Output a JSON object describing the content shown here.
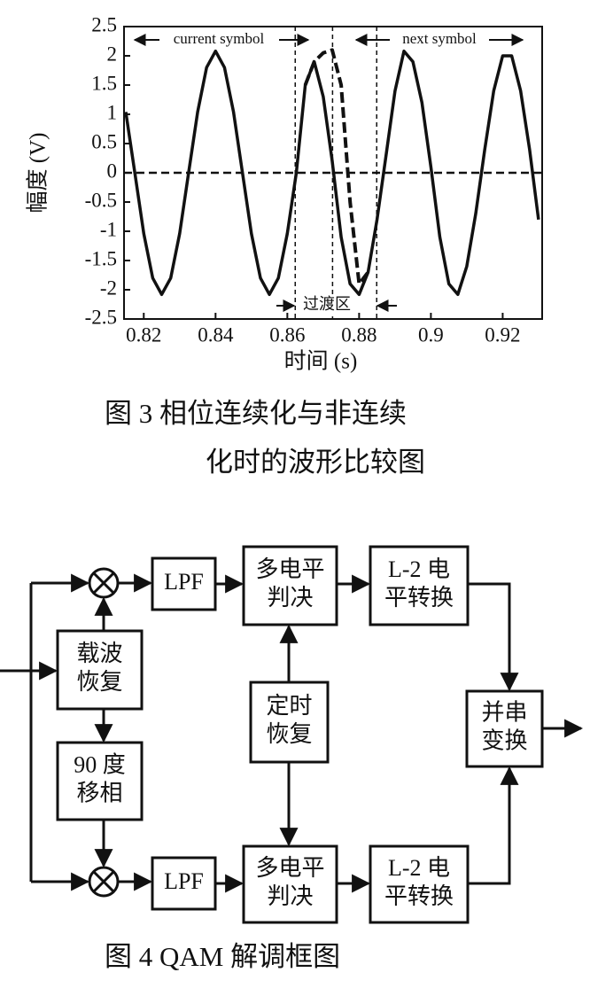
{
  "chart_data": {
    "type": "line",
    "ylabel": "幅度 (V)",
    "xlabel": "时间 (s)",
    "xlim": [
      0.8145,
      0.931
    ],
    "ylim": [
      -2.5,
      2.5
    ],
    "xticks": [
      0.82,
      0.84,
      0.86,
      0.88,
      0.9,
      0.92
    ],
    "yticks": [
      2.5,
      2,
      1.5,
      1,
      0.5,
      0,
      -0.5,
      -1,
      -1.5,
      -2,
      -2.5
    ],
    "x": [
      0.815,
      0.8175,
      0.82,
      0.8225,
      0.825,
      0.8275,
      0.83,
      0.8325,
      0.835,
      0.8375,
      0.84,
      0.8425,
      0.845,
      0.8475,
      0.85,
      0.8525,
      0.855,
      0.8575,
      0.86,
      0.8625,
      0.865,
      0.8675,
      0.87,
      0.8725,
      0.875,
      0.8775,
      0.88,
      0.8825,
      0.885,
      0.8875,
      0.89,
      0.8925,
      0.895,
      0.8975,
      0.9,
      0.9025,
      0.905,
      0.9075,
      0.91,
      0.9125,
      0.915,
      0.9175,
      0.92,
      0.9225,
      0.925,
      0.9275,
      0.93
    ],
    "series": [
      {
        "color": "#111111",
        "style": "solid",
        "values": [
          1.04,
          0,
          -1.04,
          -1.8,
          -2.08,
          -1.8,
          -1.04,
          0,
          1.04,
          1.8,
          2.08,
          1.8,
          1.04,
          0,
          -1.04,
          -1.8,
          -2.08,
          -1.8,
          -1.04,
          0,
          1.5,
          1.9,
          1.3,
          0.2,
          -1.1,
          -1.9,
          -2.08,
          -1.7,
          -0.8,
          0.3,
          1.4,
          2.08,
          1.9,
          1.2,
          0.1,
          -1.1,
          -1.9,
          -2.08,
          -1.6,
          -0.7,
          0.4,
          1.4,
          2.0,
          2.0,
          1.4,
          0.4,
          -0.8
        ]
      },
      {
        "color": "#111111",
        "style": "dashed",
        "values": [
          null,
          null,
          null,
          null,
          null,
          null,
          null,
          null,
          null,
          null,
          null,
          null,
          null,
          null,
          null,
          null,
          null,
          null,
          null,
          null,
          1.5,
          1.9,
          2.05,
          2.1,
          1.5,
          -0.5,
          -1.9,
          -1.7,
          null,
          null,
          null,
          null,
          null,
          null,
          null,
          null,
          null,
          null,
          null,
          null,
          null,
          null,
          null,
          null,
          null,
          null,
          null
        ]
      }
    ],
    "reference_line": 0,
    "vlines": [
      0.8622,
      0.8726,
      0.8849
    ],
    "annotations": {
      "current": "current symbol",
      "next": "next symbol",
      "transition": "过渡区"
    },
    "caption": [
      "图 3   相位连续化与非连续",
      "化时的波形比较图"
    ]
  },
  "diagram": {
    "nodes": [
      {
        "lines": [
          "载波",
          "恢复"
        ]
      },
      {
        "lines": [
          "90 度",
          "移相"
        ]
      },
      {
        "lines": [
          "LPF"
        ]
      },
      {
        "lines": [
          "LPF"
        ]
      },
      {
        "lines": [
          "多电平",
          "判决"
        ]
      },
      {
        "lines": [
          "多电平",
          "判决"
        ]
      },
      {
        "lines": [
          "定时",
          "恢复"
        ]
      },
      {
        "lines": [
          "L-2 电",
          "平转换"
        ]
      },
      {
        "lines": [
          "L-2 电",
          "平转换"
        ]
      },
      {
        "lines": [
          "并串",
          "变换"
        ]
      }
    ],
    "caption": "图 4   QAM 解调框图"
  }
}
